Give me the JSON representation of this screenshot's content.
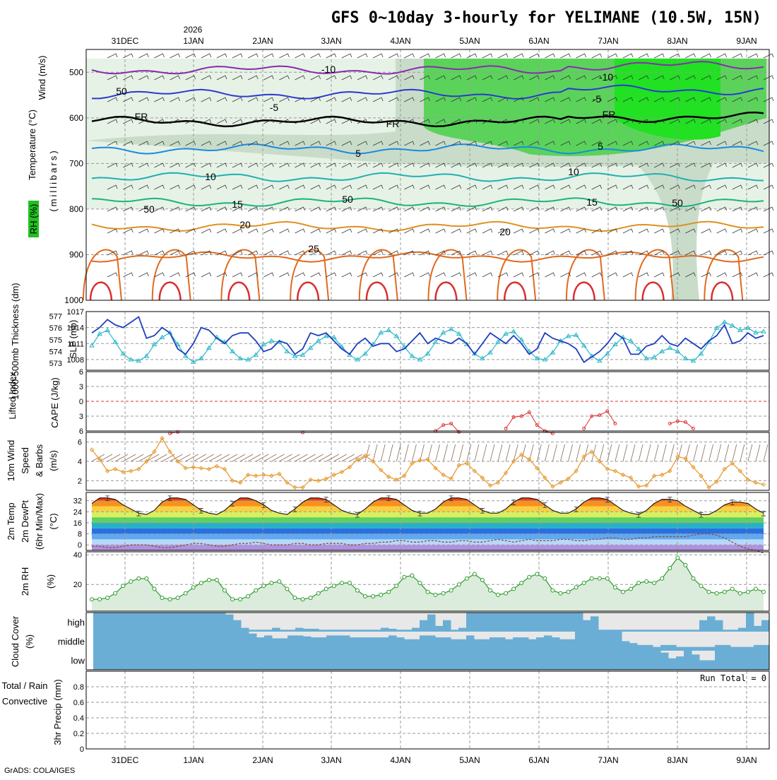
{
  "header": {
    "title": "GFS 0~10day 3-hourly for YELIMANE (10.5W, 15N)",
    "year_label": "2026",
    "credit": "GrADS: COLA/IGES"
  },
  "colors": {
    "slp": "#1f3fbf",
    "thickness": "#2ab8c8",
    "lifted_index": "#e03030",
    "cape": "#b060d0",
    "wind10m": "#e89a30",
    "barbs": "#8a6a50",
    "temp": "#d84810",
    "dewpt": "#8a5040",
    "rh2m": "#2a9a2a",
    "cloud": "#6aaed6",
    "cloud_bg": "#e8e8e8"
  },
  "chart_data": [
    {
      "id": "cross-section",
      "type": "heatmap",
      "xlabel_dates": [
        "31DEC",
        "1JAN",
        "2JAN",
        "3JAN",
        "4JAN",
        "5JAN",
        "6JAN",
        "7JAN",
        "8JAN",
        "9JAN"
      ],
      "ylabel": "(millibars)",
      "side_labels": [
        "Wind (m/s)",
        "Temperature (°C)",
        "RH (%)"
      ],
      "y_ticks": [
        500,
        600,
        700,
        800,
        900,
        1000
      ],
      "ylim": [
        450,
        1000
      ],
      "contour_labels": [
        "-10",
        "-5",
        "FR",
        "5",
        "10",
        "15",
        "20",
        "25",
        "50"
      ],
      "isotherms": [
        {
          "label": "-10",
          "level_mb": 495,
          "color": "#8a2ab0"
        },
        {
          "label": "-5",
          "level_mb": 548,
          "color": "#2a3ad0"
        },
        {
          "label": "FR",
          "level_mb": 608,
          "color": "#000000"
        },
        {
          "label": "5",
          "level_mb": 668,
          "color": "#1a8ae0"
        },
        {
          "label": "10",
          "level_mb": 730,
          "color": "#20b0b0"
        },
        {
          "label": "15",
          "level_mb": 785,
          "color": "#20b080"
        },
        {
          "label": "20",
          "level_mb": 838,
          "color": "#e09020"
        },
        {
          "label": "25",
          "level_mb": 905,
          "color": "#e06a20"
        }
      ]
    },
    {
      "id": "slp-thickness",
      "type": "line",
      "ylabel_left": "1000-500mb Thickness (dm)",
      "ylabel_right": "SLP (mb)",
      "thickness_ticks": [
        573,
        574,
        575,
        576,
        577
      ],
      "slp_ticks": [
        1008,
        1011,
        1014,
        1017
      ],
      "series": [
        {
          "name": "SLP (mb)",
          "values": [
            1013,
            1014,
            1015.5,
            1014.5,
            1014,
            1015,
            1016,
            1012,
            1012.5,
            1014,
            1013,
            1010,
            1009,
            1011,
            1014,
            1013.5,
            1012,
            1011,
            1012.5,
            1013,
            1013,
            1011.5,
            1009.5,
            1010,
            1011.5,
            1011,
            1009,
            1010,
            1013,
            1012.5,
            1013,
            1011.5,
            1010,
            1009,
            1011,
            1012,
            1010.5,
            1011,
            1011,
            1009.5,
            1010,
            1011.5,
            1013,
            1011,
            1012,
            1011.5,
            1011,
            1012,
            1011,
            1009,
            1011,
            1013,
            1012,
            1011,
            1012.5,
            1011,
            1009,
            1010,
            1013,
            1012,
            1011.5,
            1011,
            1010,
            1007.5,
            1008.5,
            1009.5,
            1011,
            1013,
            1012,
            1009,
            1009,
            1010.5,
            1011,
            1012.5,
            1011,
            1010.5,
            1012,
            1011,
            1010,
            1011.5,
            1012.5,
            1014.5,
            1011,
            1011.5,
            1013,
            1012,
            1012.5
          ]
        },
        {
          "name": "Thickness (dm)",
          "values": [
            574.5,
            575.5,
            575.8,
            574.8,
            573.8,
            573.3,
            573.2,
            573.6,
            574.6,
            575.2,
            575.6,
            574.6,
            573.6,
            573.1,
            573.4,
            574.3,
            575.2,
            574.8,
            574.0,
            573.4,
            573.3,
            573.7,
            574.6,
            574.9,
            574.8,
            574.0,
            573.6,
            573.7,
            574.3,
            574.9,
            575.3,
            575.2,
            574.4,
            573.7,
            573.3,
            573.8,
            574.6,
            575.6,
            575.8,
            575.3,
            574.4,
            573.6,
            573.3,
            573.8,
            574.8,
            575.6,
            575.9,
            575.5,
            574.6,
            573.8,
            573.4,
            573.9,
            574.8,
            575.5,
            575.7,
            575.0,
            574.0,
            573.4,
            573.3,
            573.9,
            574.9,
            575.3,
            575.4,
            574.5,
            573.6,
            573.2,
            573.8,
            574.6,
            575.2,
            574.9,
            574.2,
            573.4,
            573.5,
            574.0,
            574.3,
            574.0,
            573.4,
            573.2,
            573.8,
            574.8,
            576.0,
            576.5,
            576.2,
            575.8,
            576.0,
            575.6,
            575.7
          ]
        }
      ]
    },
    {
      "id": "cape-li",
      "type": "line",
      "ylabel_left": "Lifted Index",
      "ylabel_right": "CAPE (J/kg)",
      "y_ticks": [
        -6,
        -3,
        0,
        3,
        6
      ],
      "series": [
        {
          "name": "Lifted Index",
          "values": [
            null,
            null,
            null,
            null,
            null,
            null,
            null,
            null,
            null,
            null,
            6.5,
            6.2,
            null,
            null,
            null,
            null,
            null,
            null,
            null,
            null,
            null,
            null,
            null,
            null,
            null,
            null,
            null,
            6.3,
            null,
            null,
            null,
            null,
            null,
            null,
            null,
            null,
            null,
            null,
            null,
            null,
            null,
            null,
            null,
            null,
            6.0,
            4.8,
            4.5,
            6.2,
            null,
            null,
            null,
            null,
            null,
            5.5,
            3.2,
            3.0,
            2.2,
            4.8,
            6.0,
            6.5,
            null,
            null,
            null,
            5.5,
            3.0,
            2.8,
            2.0,
            4.5,
            null,
            null,
            null,
            null,
            null,
            null,
            4.5,
            4.0,
            4.2,
            5.5,
            null,
            null,
            null,
            null,
            null,
            null,
            null,
            null,
            null
          ]
        }
      ]
    },
    {
      "id": "wind10m",
      "type": "line",
      "ylabel": "10m Wind Speed & Barbs (m/s)",
      "y_ticks": [
        2,
        4,
        6
      ],
      "series": [
        {
          "name": "10m Wind Speed",
          "values": [
            5.2,
            4.2,
            3.0,
            3.2,
            2.9,
            3.0,
            3.2,
            4.0,
            5.0,
            6.4,
            5.0,
            4.0,
            3.3,
            3.4,
            3.3,
            3.2,
            3.5,
            3.2,
            2.0,
            1.8,
            2.6,
            2.5,
            2.6,
            2.5,
            2.7,
            1.8,
            1.3,
            1.3,
            2.1,
            2.0,
            2.2,
            2.6,
            2.9,
            3.4,
            4.2,
            4.6,
            4.0,
            3.1,
            2.4,
            2.1,
            2.5,
            3.8,
            4.1,
            4.2,
            3.3,
            2.6,
            2.2,
            3.6,
            3.8,
            3.0,
            2.3,
            1.5,
            1.8,
            2.8,
            4.0,
            4.7,
            4.2,
            3.3,
            2.3,
            1.4,
            1.8,
            2.2,
            3.0,
            4.5,
            5.0,
            4.0,
            3.2,
            3.0,
            2.6,
            2.3,
            1.4,
            1.5,
            2.5,
            2.6,
            3.0,
            4.5,
            4.3,
            3.4,
            2.5,
            1.3,
            1.9,
            3.2,
            3.8,
            3.0,
            2.1,
            1.8,
            1.6
          ]
        }
      ]
    },
    {
      "id": "temp2m",
      "type": "area",
      "ylabel": "2m Temp 2m DewPt (6hr Min/Max) (°C)",
      "y_ticks": [
        0,
        8,
        16,
        24,
        32
      ],
      "series": [
        {
          "name": "2m Temp",
          "values": [
            30,
            34,
            34,
            33,
            29,
            26,
            23,
            22,
            25,
            31,
            34,
            34,
            33,
            29,
            25,
            23,
            22,
            25,
            30,
            34,
            34,
            32,
            29,
            25,
            23,
            22,
            26,
            31,
            34,
            34,
            33,
            29,
            25,
            23,
            22,
            26,
            31,
            34,
            34,
            33,
            29,
            25,
            23,
            23,
            26,
            31,
            34,
            34,
            33,
            29,
            25,
            23,
            23,
            26,
            31,
            34,
            34,
            33,
            29,
            25,
            23,
            23,
            26,
            31,
            34,
            34,
            33,
            29,
            25,
            23,
            22,
            25,
            30,
            33,
            33,
            32,
            28,
            25,
            22,
            22,
            25,
            29,
            31,
            31,
            30,
            26,
            23
          ]
        },
        {
          "name": "2m DewPt",
          "values": [
            -1,
            -1,
            -2,
            -2,
            -1,
            0,
            0,
            0,
            -1,
            -2,
            -2,
            -1,
            0,
            1,
            1,
            0,
            -1,
            -1,
            0,
            1,
            1,
            2,
            1,
            0,
            0,
            0,
            1,
            1,
            0,
            0,
            1,
            1,
            1,
            0,
            0,
            1,
            1,
            2,
            2,
            3,
            3,
            2,
            2,
            3,
            3,
            2,
            2,
            3,
            3,
            2,
            2,
            3,
            4,
            3,
            2,
            3,
            4,
            3,
            3,
            3,
            4,
            4,
            3,
            3,
            4,
            4,
            5,
            5,
            4,
            4,
            5,
            5,
            6,
            6,
            6,
            6,
            6,
            7,
            8,
            8,
            7,
            5,
            2,
            -1,
            -3,
            -4,
            -6
          ]
        }
      ]
    },
    {
      "id": "rh2m",
      "type": "area",
      "ylabel": "2m RH (%)",
      "y_ticks": [
        20,
        40
      ],
      "series": [
        {
          "name": "2m RH",
          "values": [
            10,
            10,
            11,
            14,
            19,
            22,
            24,
            24,
            17,
            11,
            10,
            11,
            14,
            18,
            21,
            23,
            23,
            16,
            10,
            10,
            12,
            16,
            19,
            21,
            22,
            17,
            11,
            10,
            11,
            14,
            17,
            19,
            21,
            21,
            16,
            12,
            12,
            13,
            15,
            19,
            25,
            26,
            21,
            15,
            13,
            14,
            16,
            20,
            24,
            27,
            23,
            16,
            13,
            14,
            17,
            21,
            25,
            27,
            24,
            16,
            14,
            15,
            18,
            21,
            24,
            24,
            24,
            18,
            15,
            17,
            21,
            22,
            21,
            24,
            31,
            38,
            33,
            24,
            19,
            15,
            14,
            15,
            17,
            14,
            15,
            17,
            15
          ]
        }
      ]
    },
    {
      "id": "cloud-cover",
      "type": "bar",
      "ylabel": "Cloud Cover (%)",
      "rows": [
        "high",
        "middle",
        "low"
      ],
      "series": [
        {
          "name": "high",
          "values": [
            100,
            100,
            100,
            100,
            100,
            100,
            100,
            100,
            100,
            100,
            100,
            100,
            100,
            100,
            100,
            100,
            100,
            90,
            60,
            20,
            10,
            10,
            10,
            20,
            10,
            10,
            20,
            15,
            15,
            10,
            10,
            10,
            10,
            10,
            10,
            10,
            10,
            20,
            15,
            10,
            10,
            20,
            60,
            90,
            30,
            60,
            10,
            20,
            100,
            100,
            100,
            100,
            100,
            100,
            100,
            100,
            100,
            100,
            100,
            100,
            100,
            100,
            100,
            60,
            80,
            10,
            10,
            10,
            10,
            10,
            10,
            10,
            10,
            10,
            10,
            10,
            10,
            10,
            60,
            80,
            60,
            10,
            10,
            20,
            100,
            30,
            60
          ]
        },
        {
          "name": "middle",
          "values": [
            100,
            100,
            100,
            100,
            100,
            100,
            100,
            100,
            100,
            100,
            100,
            100,
            100,
            100,
            100,
            100,
            100,
            100,
            100,
            100,
            90,
            70,
            80,
            65,
            65,
            80,
            80,
            75,
            70,
            70,
            80,
            80,
            80,
            70,
            70,
            70,
            70,
            70,
            80,
            70,
            60,
            60,
            80,
            80,
            70,
            70,
            60,
            60,
            80,
            60,
            60,
            70,
            70,
            60,
            70,
            70,
            60,
            70,
            80,
            70,
            60,
            60,
            100,
            100,
            100,
            100,
            100,
            100,
            50,
            40,
            30,
            30,
            20,
            30,
            30,
            20,
            20,
            20,
            20,
            20,
            30,
            30,
            20,
            20,
            20,
            30,
            30
          ]
        },
        {
          "name": "low",
          "values": [
            100,
            100,
            100,
            100,
            100,
            100,
            100,
            100,
            100,
            100,
            100,
            100,
            100,
            100,
            100,
            100,
            100,
            100,
            100,
            100,
            100,
            100,
            100,
            100,
            100,
            100,
            100,
            100,
            100,
            100,
            100,
            100,
            100,
            100,
            100,
            100,
            100,
            100,
            100,
            100,
            100,
            100,
            100,
            100,
            100,
            100,
            100,
            100,
            100,
            100,
            100,
            100,
            100,
            100,
            100,
            100,
            100,
            100,
            100,
            100,
            100,
            100,
            100,
            100,
            100,
            100,
            100,
            100,
            100,
            100,
            100,
            100,
            100,
            90,
            60,
            70,
            100,
            80,
            50,
            50,
            100,
            100,
            100,
            100,
            100,
            100,
            100
          ]
        }
      ]
    },
    {
      "id": "precip",
      "type": "bar",
      "ylabel": "3hr Precip (mm)",
      "ylabel_left": "Total / Rain",
      "ylabel_left2": "Convective",
      "y_ticks": [
        0,
        0.2,
        0.4,
        0.6,
        0.8
      ],
      "ylim": [
        0,
        1
      ],
      "run_total": "Run Total = 0",
      "values": [
        0
      ]
    }
  ]
}
